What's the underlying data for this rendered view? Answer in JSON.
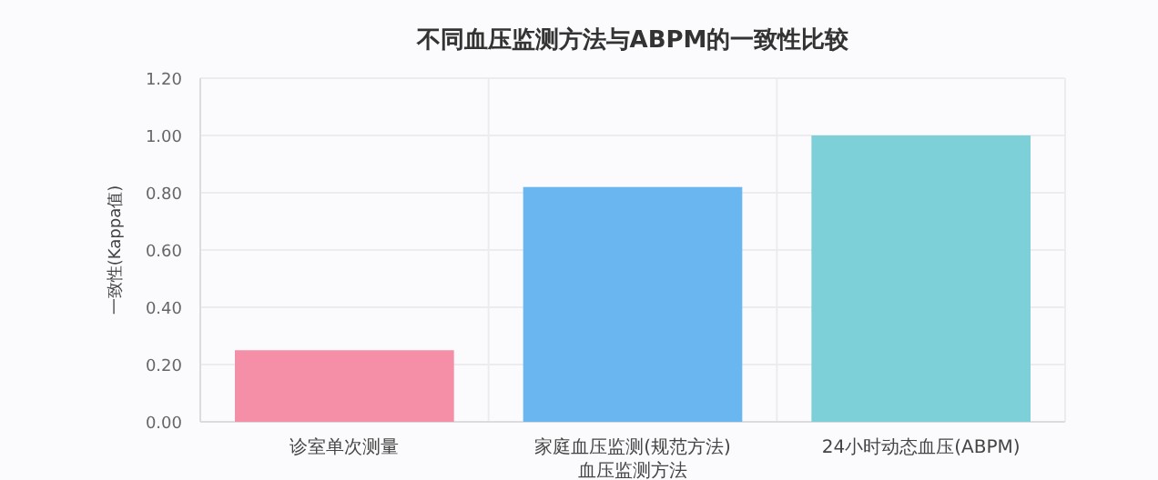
{
  "chart_data": {
    "type": "bar",
    "title": "不同血压监测方法与ABPM的一致性比较",
    "xlabel": "血压监测方法",
    "ylabel": "一致性(Kappa值)",
    "categories": [
      "诊室单次测量",
      "家庭血压监测(规范方法)",
      "24小时动态血压(ABPM)"
    ],
    "values": [
      0.25,
      0.82,
      1.0
    ],
    "colors": [
      "#f58fa8",
      "#6ab6f0",
      "#7dd0d8"
    ],
    "ylim": [
      0,
      1.2
    ],
    "yticks": [
      {
        "value": 0,
        "label": "0.00"
      },
      {
        "value": 0.2,
        "label": "0.20"
      },
      {
        "value": 0.4,
        "label": "0.40"
      },
      {
        "value": 0.6,
        "label": "0.60"
      },
      {
        "value": 0.8,
        "label": "0.80"
      },
      {
        "value": 1.0,
        "label": "1.00"
      },
      {
        "value": 1.2,
        "label": "1.20"
      }
    ],
    "grid": true
  }
}
